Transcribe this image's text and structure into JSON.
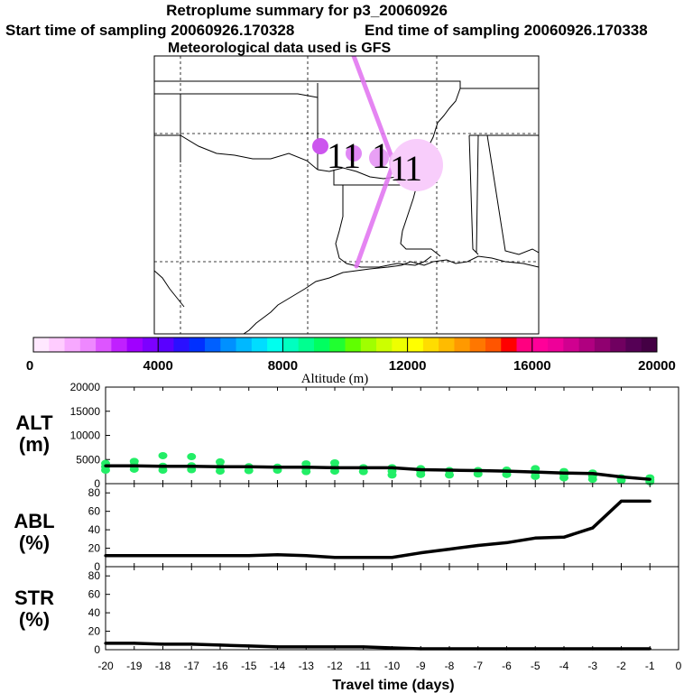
{
  "header": {
    "title": "Retroplume summary for p3_20060926",
    "start_text": "Start time of sampling 20060926.170328",
    "end_text": "End time of sampling 20060926.170338",
    "met_text": "Meteorological data used is GFS"
  },
  "colorbar": {
    "colors": [
      "#ffe8ff",
      "#ffccff",
      "#f7a8ff",
      "#ee88ff",
      "#dd55ff",
      "#c020ff",
      "#a000ff",
      "#7d00ff",
      "#5a00ff",
      "#2a10ff",
      "#0030ff",
      "#0060ff",
      "#0090ff",
      "#00b8ff",
      "#00ddff",
      "#00ffee",
      "#00ffc0",
      "#00ff90",
      "#00ff60",
      "#20ff30",
      "#60ff00",
      "#a0ff00",
      "#ccff00",
      "#eeff00",
      "#ffff00",
      "#ffdd00",
      "#ffbb00",
      "#ff9900",
      "#ff7700",
      "#ff5500",
      "#ff0000",
      "#ff0080",
      "#ff0099",
      "#ee0099",
      "#d00090",
      "#b00080",
      "#900070",
      "#700060",
      "#550055",
      "#440044"
    ],
    "tick_labels": [
      "0",
      "4000",
      "8000",
      "12000",
      "16000",
      "20000"
    ],
    "axis_title": "Altitude (m)"
  },
  "map": {
    "markers": [
      {
        "label": "1",
        "color": "#cc55ee"
      },
      {
        "label": "1",
        "color": "#e088f5"
      },
      {
        "label": "1",
        "color": "#e8a0f5"
      },
      {
        "label": "1",
        "color": "#f2baf8"
      },
      {
        "label": "1",
        "color": "#f8cdfb"
      }
    ],
    "trajectory_color": "#e070f0"
  },
  "chart_data": [
    {
      "type": "line",
      "panel_label_1": "ALT",
      "panel_label_2": "(m)",
      "ylim": [
        0,
        20000
      ],
      "yticks": [
        "20000",
        "15000",
        "10000",
        "5000",
        "0"
      ],
      "x": [
        -20,
        -19,
        -18,
        -17,
        -16,
        -15,
        -14,
        -13,
        -12,
        -11,
        -10,
        -9,
        -8,
        -7,
        -6,
        -5,
        -4,
        -3,
        -2,
        -1
      ],
      "line": [
        3700,
        3700,
        3600,
        3600,
        3500,
        3500,
        3400,
        3400,
        3300,
        3300,
        3300,
        2900,
        2800,
        2700,
        2600,
        2400,
        2200,
        2100,
        1400,
        900
      ],
      "scatter_color": "#22ee66",
      "scatter": [
        {
          "x": -20,
          "y": [
            2800,
            3500,
            4200
          ]
        },
        {
          "x": -19,
          "y": [
            3000,
            3800,
            4600
          ]
        },
        {
          "x": -18,
          "y": [
            2800,
            3600,
            5800
          ]
        },
        {
          "x": -17,
          "y": [
            2900,
            3700,
            5600
          ]
        },
        {
          "x": -16,
          "y": [
            2600,
            3400,
            4500
          ]
        },
        {
          "x": -15,
          "y": [
            2700,
            3500
          ]
        },
        {
          "x": -14,
          "y": [
            2800,
            3400
          ]
        },
        {
          "x": -13,
          "y": [
            2500,
            3200,
            4100
          ]
        },
        {
          "x": -12,
          "y": [
            2600,
            3400,
            4300
          ]
        },
        {
          "x": -11,
          "y": [
            2500,
            3300
          ]
        },
        {
          "x": -10,
          "y": [
            1800,
            2600,
            3300
          ]
        },
        {
          "x": -9,
          "y": [
            1900,
            2600,
            3100
          ]
        },
        {
          "x": -8,
          "y": [
            1800,
            2700
          ]
        },
        {
          "x": -7,
          "y": [
            2000,
            2700
          ]
        },
        {
          "x": -6,
          "y": [
            1900,
            2800
          ]
        },
        {
          "x": -5,
          "y": [
            1500,
            2300,
            3100
          ]
        },
        {
          "x": -4,
          "y": [
            1200,
            1900,
            2500
          ]
        },
        {
          "x": -3,
          "y": [
            900,
            1600,
            2200
          ]
        },
        {
          "x": -2,
          "y": [
            700,
            1200
          ]
        },
        {
          "x": -1,
          "y": [
            400,
            800,
            1200
          ]
        }
      ]
    },
    {
      "type": "line",
      "panel_label_1": "ABL",
      "panel_label_2": "(%)",
      "ylim": [
        0,
        90
      ],
      "yticks": [
        "80",
        "60",
        "40",
        "20",
        "0"
      ],
      "x": [
        -20,
        -19,
        -18,
        -17,
        -16,
        -15,
        -14,
        -13,
        -12,
        -11,
        -10,
        -9,
        -8,
        -7,
        -6,
        -5,
        -4,
        -3,
        -2,
        -1
      ],
      "values": [
        12,
        12,
        12,
        12,
        12,
        12,
        13,
        12,
        10,
        10,
        10,
        15,
        19,
        23,
        26,
        31,
        32,
        42,
        71,
        71
      ]
    },
    {
      "type": "line",
      "panel_label_1": "STR",
      "panel_label_2": "(%)",
      "ylim": [
        0,
        90
      ],
      "yticks": [
        "80",
        "60",
        "40",
        "20",
        "0"
      ],
      "x": [
        -20,
        -19,
        -18,
        -17,
        -16,
        -15,
        -14,
        -13,
        -12,
        -11,
        -10,
        -9,
        -8,
        -7,
        -6,
        -5,
        -4,
        -3,
        -2,
        -1
      ],
      "values": [
        7,
        7,
        6,
        6,
        5,
        4,
        3,
        3,
        3,
        3,
        2,
        1,
        1,
        1,
        1,
        1,
        1,
        1,
        1,
        1
      ],
      "xticks": [
        "-20",
        "-19",
        "-18",
        "-17",
        "-16",
        "-15",
        "-14",
        "-13",
        "-12",
        "-11",
        "-10",
        "-9",
        "-8",
        "-7",
        "-6",
        "-5",
        "-4",
        "-3",
        "-2",
        "-1",
        "0"
      ],
      "xlabel": "Travel time (days)"
    }
  ]
}
